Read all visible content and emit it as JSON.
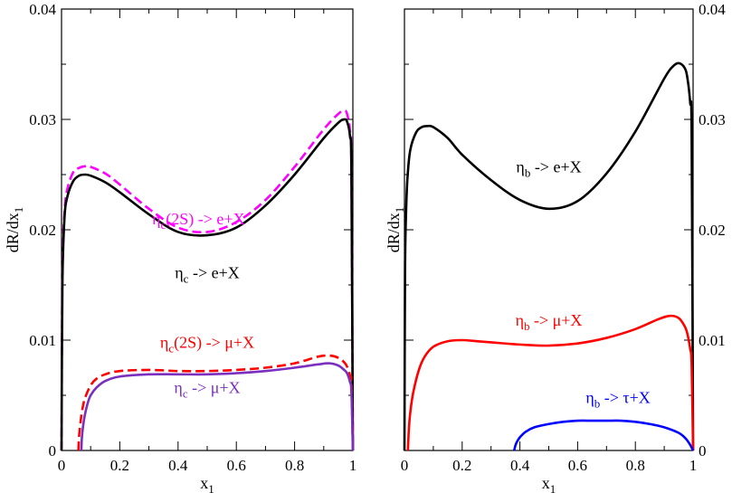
{
  "chart_data": [
    {
      "type": "line",
      "panel": "left",
      "xlabel": "x",
      "xlabel_sub": "1",
      "ylabel": "dR/dx",
      "ylabel_sub": "1",
      "xlim": [
        0,
        1
      ],
      "ylim": [
        0,
        0.04
      ],
      "xticks": [
        0,
        0.2,
        0.4,
        0.6,
        0.8,
        1
      ],
      "xtick_labels": [
        "0",
        "0.2",
        "0.4",
        "0.6",
        "0.8",
        "1"
      ],
      "yticks": [
        0,
        0.01,
        0.02,
        0.03,
        0.04
      ],
      "ytick_labels": [
        "0",
        "0.01",
        "0.02",
        "0.03",
        "0.04"
      ],
      "ytick_side": "left",
      "series": [
        {
          "name": "eta_c(2S) -> e+X",
          "color": "#ff00ff",
          "style": "dashed",
          "x": [
            0,
            0.003,
            0.01,
            0.02,
            0.04,
            0.06,
            0.08,
            0.1,
            0.15,
            0.2,
            0.3,
            0.4,
            0.5,
            0.6,
            0.7,
            0.8,
            0.9,
            0.95,
            0.97,
            0.98,
            0.99,
            0.995,
            1
          ],
          "y": [
            0,
            0.016,
            0.0215,
            0.0237,
            0.0252,
            0.0256,
            0.02575,
            0.0257,
            0.0251,
            0.0241,
            0.0219,
            0.0202,
            0.0198,
            0.0207,
            0.0227,
            0.0257,
            0.0291,
            0.0305,
            0.0308,
            0.0305,
            0.029,
            0.0255,
            0
          ]
        },
        {
          "name": "eta_c -> e+X",
          "color": "#000000",
          "style": "solid",
          "x": [
            0,
            0.003,
            0.01,
            0.02,
            0.04,
            0.06,
            0.08,
            0.1,
            0.15,
            0.2,
            0.3,
            0.4,
            0.5,
            0.6,
            0.7,
            0.8,
            0.9,
            0.95,
            0.97,
            0.98,
            0.99,
            0.995,
            1
          ],
          "y": [
            0,
            0.015,
            0.021,
            0.023,
            0.0244,
            0.0249,
            0.025,
            0.0249,
            0.0243,
            0.0234,
            0.0214,
            0.0198,
            0.0195,
            0.0202,
            0.0222,
            0.025,
            0.0283,
            0.0297,
            0.03,
            0.0298,
            0.0285,
            0.025,
            0
          ]
        },
        {
          "name": "eta_c(2S) -> mu+X",
          "color": "#ff0000",
          "style": "dashed",
          "x": [
            0.058,
            0.06,
            0.065,
            0.07,
            0.08,
            0.1,
            0.12,
            0.15,
            0.2,
            0.3,
            0.4,
            0.5,
            0.6,
            0.7,
            0.8,
            0.88,
            0.92,
            0.95,
            0.97,
            0.98,
            0.99,
            0.995,
            1
          ],
          "y": [
            0,
            0.0012,
            0.0025,
            0.0035,
            0.0047,
            0.0059,
            0.0065,
            0.0069,
            0.0072,
            0.0073,
            0.0072,
            0.0072,
            0.0073,
            0.0075,
            0.0079,
            0.0085,
            0.0086,
            0.0084,
            0.008,
            0.0076,
            0.0068,
            0.006,
            0
          ]
        },
        {
          "name": "eta_c -> mu+X",
          "color": "#7b2fbe",
          "style": "solid",
          "x": [
            0.068,
            0.07,
            0.075,
            0.08,
            0.09,
            0.1,
            0.12,
            0.15,
            0.2,
            0.3,
            0.4,
            0.5,
            0.6,
            0.7,
            0.8,
            0.88,
            0.92,
            0.95,
            0.97,
            0.98,
            0.99,
            0.995,
            1
          ],
          "y": [
            0,
            0.0012,
            0.0024,
            0.0032,
            0.0043,
            0.005,
            0.0057,
            0.0063,
            0.0067,
            0.0069,
            0.0069,
            0.0069,
            0.007,
            0.0072,
            0.0075,
            0.0078,
            0.0079,
            0.0077,
            0.0073,
            0.007,
            0.0062,
            0.0053,
            0
          ]
        }
      ],
      "annotations": [
        {
          "text": "η",
          "sub": "c",
          "rest": "(2S) -> e+X",
          "color": "#ff00ff",
          "x": 0.47,
          "y": 0.0205
        },
        {
          "text": "η",
          "sub": "c",
          "rest": " -> e+X",
          "color": "#000000",
          "x": 0.5,
          "y": 0.0156
        },
        {
          "text": "η",
          "sub": "c",
          "rest": "(2S) -> μ+X",
          "color": "#ff0000",
          "x": 0.5,
          "y": 0.0093
        },
        {
          "text": "η",
          "sub": "c",
          "rest": " -> μ+X",
          "color": "#7b2fbe",
          "x": 0.5,
          "y": 0.0052
        }
      ]
    },
    {
      "type": "line",
      "panel": "right",
      "xlabel": "x",
      "xlabel_sub": "1",
      "ylabel": "dR/dx",
      "ylabel_sub": "1",
      "xlim": [
        0,
        1
      ],
      "ylim": [
        0,
        0.04
      ],
      "xticks": [
        0,
        0.2,
        0.4,
        0.6,
        0.8,
        1
      ],
      "xtick_labels": [
        "0",
        "0.2",
        "0.4",
        "0.6",
        "0.8",
        "1"
      ],
      "yticks": [
        0,
        0.01,
        0.02,
        0.03,
        0.04
      ],
      "ytick_labels": [
        "0",
        "0.01",
        "0.02",
        "0.03",
        "0.04"
      ],
      "ytick_side": "right",
      "series": [
        {
          "name": "eta_b -> e+X",
          "color": "#000000",
          "style": "solid",
          "x": [
            0,
            0.002,
            0.005,
            0.01,
            0.02,
            0.04,
            0.06,
            0.08,
            0.1,
            0.15,
            0.2,
            0.3,
            0.4,
            0.5,
            0.6,
            0.7,
            0.8,
            0.9,
            0.93,
            0.95,
            0.97,
            0.98,
            0.99,
            0.995,
            1
          ],
          "y": [
            0,
            0.016,
            0.021,
            0.0245,
            0.0272,
            0.0288,
            0.0293,
            0.0294,
            0.0293,
            0.0283,
            0.0268,
            0.0245,
            0.0227,
            0.0219,
            0.0226,
            0.0251,
            0.0289,
            0.0337,
            0.0348,
            0.0351,
            0.0347,
            0.0338,
            0.0315,
            0.0285,
            0
          ]
        },
        {
          "name": "eta_b -> mu+X",
          "color": "#ff0000",
          "style": "solid",
          "x": [
            0.012,
            0.015,
            0.02,
            0.03,
            0.05,
            0.07,
            0.1,
            0.15,
            0.2,
            0.25,
            0.3,
            0.4,
            0.5,
            0.6,
            0.7,
            0.8,
            0.88,
            0.92,
            0.95,
            0.97,
            0.98,
            0.99,
            0.995,
            1
          ],
          "y": [
            0,
            0.0018,
            0.0034,
            0.0052,
            0.0073,
            0.0085,
            0.0094,
            0.0099,
            0.01,
            0.0099,
            0.0098,
            0.0096,
            0.0095,
            0.0097,
            0.0102,
            0.011,
            0.0119,
            0.0122,
            0.012,
            0.0113,
            0.0106,
            0.0092,
            0.0078,
            0
          ]
        },
        {
          "name": "eta_b -> tau+X",
          "color": "#0000ff",
          "style": "solid",
          "x": [
            0.38,
            0.385,
            0.39,
            0.4,
            0.42,
            0.45,
            0.5,
            0.55,
            0.6,
            0.65,
            0.7,
            0.75,
            0.8,
            0.85,
            0.9,
            0.95,
            0.97,
            0.98,
            0.99,
            1
          ],
          "y": [
            0,
            0.0005,
            0.0008,
            0.0012,
            0.0017,
            0.0021,
            0.0024,
            0.0026,
            0.0027,
            0.0027,
            0.0027,
            0.0027,
            0.0026,
            0.0024,
            0.0021,
            0.0016,
            0.0012,
            0.0009,
            0.0005,
            0
          ]
        }
      ],
      "annotations": [
        {
          "text": "η",
          "sub": "b",
          "rest": " -> e+X",
          "color": "#000000",
          "x": 0.5,
          "y": 0.0252
        },
        {
          "text": "η",
          "sub": "b",
          "rest": " -> μ+X",
          "color": "#ff0000",
          "x": 0.5,
          "y": 0.0113
        },
        {
          "text": "η",
          "sub": "b",
          "rest": " -> τ+X",
          "color": "#0000ff",
          "x": 0.74,
          "y": 0.0043
        }
      ]
    }
  ]
}
